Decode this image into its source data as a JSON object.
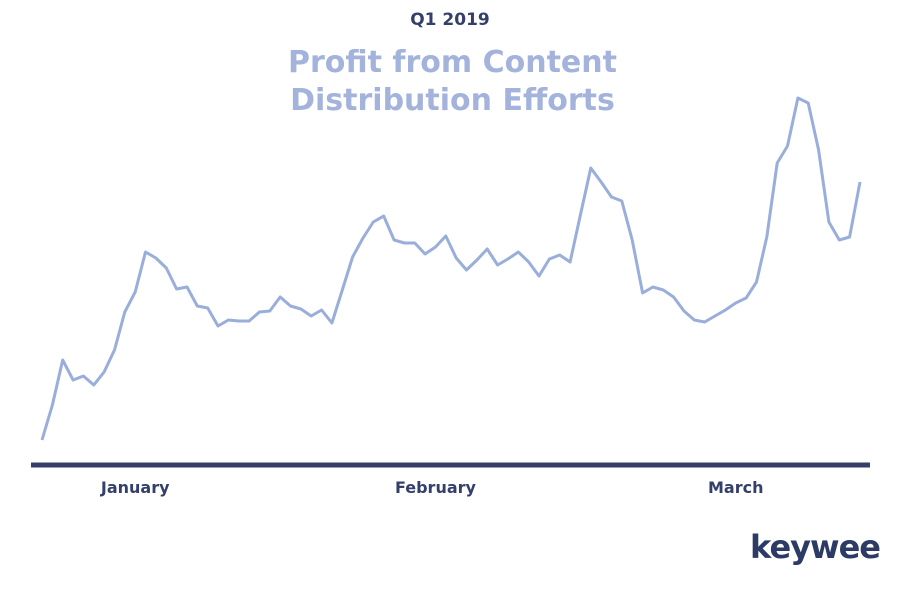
{
  "chart_data": {
    "type": "line",
    "supertitle": "Q1 2019",
    "title": "Profit from Content Distribution Efforts",
    "logo": "keywee",
    "categories": [
      null,
      null,
      null,
      null,
      null,
      null,
      null,
      null,
      null,
      "January",
      null,
      null,
      null,
      null,
      null,
      null,
      null,
      null,
      null,
      null,
      null,
      null,
      null,
      null,
      null,
      null,
      null,
      null,
      null,
      null,
      null,
      null,
      null,
      null,
      null,
      null,
      null,
      null,
      "February",
      null,
      null,
      null,
      null,
      null,
      null,
      null,
      null,
      null,
      null,
      null,
      null,
      null,
      null,
      null,
      null,
      null,
      null,
      null,
      null,
      null,
      null,
      null,
      null,
      null,
      null,
      null,
      null,
      "March",
      null,
      null,
      null,
      null,
      null,
      null,
      null,
      null,
      null,
      null,
      null,
      null
    ],
    "values": [
      25,
      60,
      105,
      85,
      89,
      80,
      93,
      115,
      153,
      173,
      213,
      207,
      197,
      176,
      178,
      159,
      157,
      139,
      145,
      144,
      144,
      153,
      154,
      168,
      159,
      156,
      149,
      155,
      142,
      175,
      208,
      227,
      243,
      249,
      225,
      222,
      222,
      211,
      218,
      229,
      207,
      195,
      205,
      216,
      200,
      206,
      213,
      203,
      189,
      206,
      210,
      203,
      250,
      297,
      283,
      268,
      264,
      225,
      172,
      178,
      175,
      168,
      154,
      145,
      143,
      149,
      155,
      162,
      167,
      183,
      228,
      302,
      319,
      367,
      362,
      315,
      243,
      225,
      228,
      283
    ],
    "color": "#9aaedb",
    "axis_color": "#34406b"
  }
}
